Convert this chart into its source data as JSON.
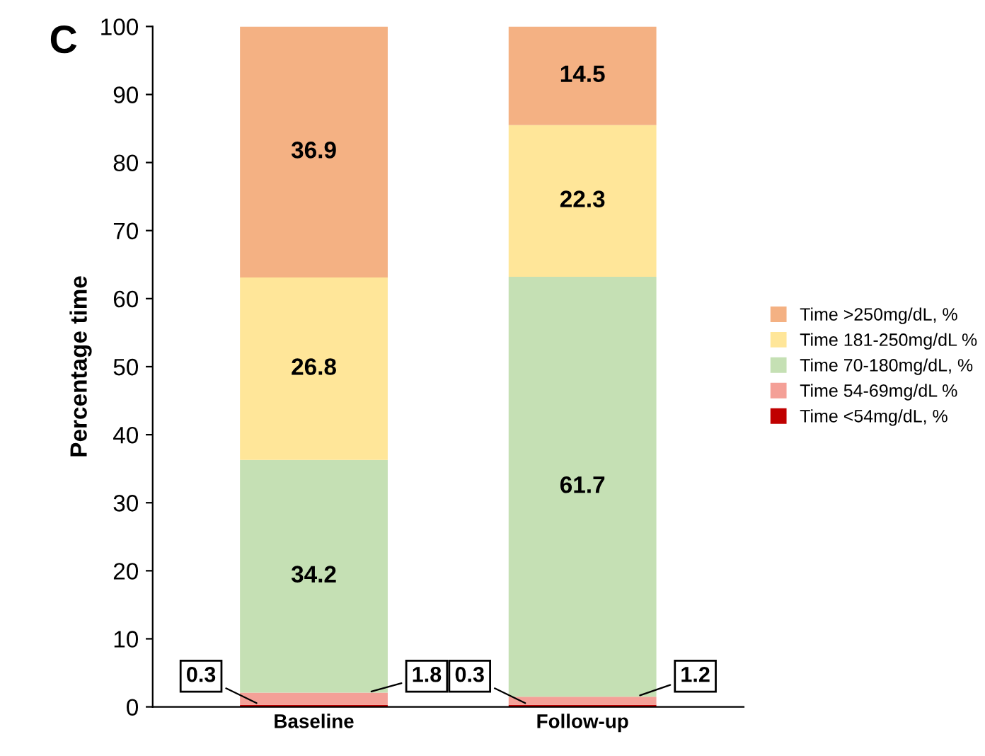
{
  "chart_data": {
    "type": "bar",
    "stacked": true,
    "ylabel": "Percentage time",
    "annotations": [
      "C"
    ],
    "categories": [
      "Baseline",
      "Follow-up"
    ],
    "series": [
      {
        "name": "Time <54mg/dL, %",
        "color": "#c00000",
        "values": [
          0.3,
          0.3
        ]
      },
      {
        "name": "Time 54-69mg/dL %",
        "color": "#f4a097",
        "values": [
          1.8,
          1.2
        ]
      },
      {
        "name": "Time 70-180mg/dL, %",
        "color": "#c5e0b4",
        "values": [
          34.2,
          61.7
        ]
      },
      {
        "name": "Time 181-250mg/dL %",
        "color": "#ffe699",
        "values": [
          26.8,
          22.3
        ]
      },
      {
        "name": "Time >250mg/dL, %",
        "color": "#f4b183",
        "values": [
          36.9,
          14.5
        ]
      }
    ],
    "ylim": [
      0,
      100
    ],
    "yticks": [
      0,
      10,
      20,
      30,
      40,
      50,
      60,
      70,
      80,
      90,
      100
    ],
    "data_labels": true,
    "legend": "right",
    "grid": false
  }
}
